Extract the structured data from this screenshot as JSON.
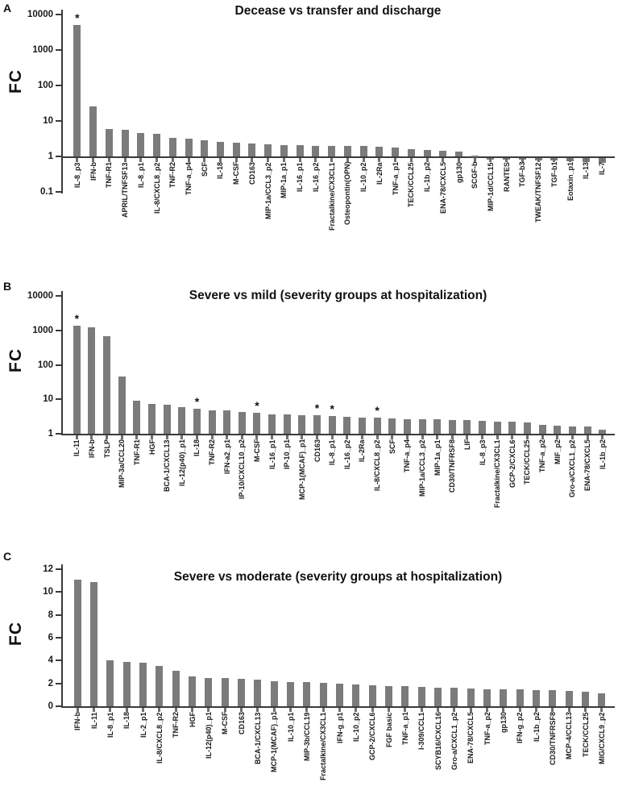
{
  "significance_marker": "*",
  "chart_data": [
    {
      "panel_label": "A",
      "type": "bar",
      "title": "Decease vs transfer and discharge",
      "ylabel": "FC",
      "yscale": "log",
      "ylim": [
        0.1,
        10000
      ],
      "yticks": [
        "10000",
        "1000",
        "100",
        "10",
        "1",
        "0.1"
      ],
      "baseline": 1,
      "grid": false,
      "bar_color": "#7b7b7b",
      "categories": [
        "IL-8_p3",
        "IFN-b",
        "TNF-R1",
        "APRIL/TNFSF13",
        "IL-8_p1",
        "IL-8/CXCL8_p2",
        "TNF-R2",
        "TNF-a_p4",
        "SCF",
        "IL-18",
        "M-CSF",
        "CD163",
        "MIP-1a/CCL3_p2",
        "MIP-1a_p1",
        "IL-16_p1",
        "IL-16_p2",
        "Fractalkine/CX3CL1",
        "Osteopontin(OPN)",
        "IL-10_p2",
        "IL-2Ra",
        "TNF-a_p1",
        "TECK/CCL25",
        "IL-1b_p2",
        "ENA-78/CXCL5",
        "gp130",
        "SCGF-b",
        "MIP-1d/CCL15",
        "RANTES",
        "TGF-b3",
        "TWEAK/TNFSF12",
        "TGF-b1",
        "Eotaxin_p1",
        "IL-13",
        "IL-7"
      ],
      "values": [
        5000,
        25,
        5.8,
        5.5,
        4.6,
        4.3,
        3.4,
        3.2,
        2.8,
        2.6,
        2.4,
        2.3,
        2.2,
        2.1,
        2.05,
        2.0,
        2.0,
        2.0,
        1.95,
        1.9,
        1.75,
        1.6,
        1.55,
        1.45,
        1.35,
        1.05,
        0.95,
        0.92,
        0.9,
        0.87,
        0.85,
        0.82,
        0.78,
        0.72
      ],
      "significant_indices": [
        0
      ]
    },
    {
      "panel_label": "B",
      "type": "bar",
      "title": "Severe vs mild (severity groups at hospitalization)",
      "ylabel": "FC",
      "yscale": "log",
      "ylim": [
        1,
        10000
      ],
      "yticks": [
        "10000",
        "1000",
        "100",
        "10",
        "1"
      ],
      "baseline": 1,
      "grid": false,
      "bar_color": "#7b7b7b",
      "categories": [
        "IL-11",
        "IFN-b",
        "TSLP",
        "MIP-3a/CCL20",
        "TNF-R1",
        "HGF",
        "BCA-1/CXCL13",
        "IL-12(p40)_p1",
        "IL-18",
        "TNF-R2",
        "IFN-a2_p1",
        "IP-10/CXCL10_p2",
        "M-CSF",
        "IL-16_p1",
        "IP-10_p1",
        "MCP-1(MCAF)_p1",
        "CD163",
        "IL-8_p1",
        "IL-16_p2",
        "IL-2Ra",
        "IL-8/CXCL8_p2",
        "SCF",
        "TNF-a_p4",
        "MIP-1a/CCL3_p2",
        "MIP-1a_p1",
        "CD30/TNFRSF8",
        "LIF",
        "IL-8_p3",
        "Fractalkine/CX3CL1",
        "GCP-2/CXCL6",
        "TECK/CCL25",
        "TNF-a_p2",
        "MIF_p2",
        "Gro-a/CXCL1_p2",
        "ENA-78/CXCL5",
        "IL-1b_p2"
      ],
      "values": [
        1350,
        1200,
        680,
        45,
        9,
        7.5,
        6.8,
        5.8,
        5.2,
        4.8,
        4.7,
        4.2,
        4.0,
        3.7,
        3.6,
        3.5,
        3.4,
        3.3,
        3.1,
        3.0,
        3.0,
        2.8,
        2.7,
        2.7,
        2.6,
        2.5,
        2.5,
        2.4,
        2.3,
        2.2,
        2.1,
        1.8,
        1.7,
        1.65,
        1.6,
        1.3
      ],
      "significant_indices": [
        0,
        8,
        12,
        16,
        17,
        20
      ]
    },
    {
      "panel_label": "C",
      "type": "bar",
      "title": "Severe vs moderate (severity groups at hospitalization)",
      "ylabel": "FC",
      "yscale": "linear",
      "ylim": [
        0,
        12
      ],
      "yticks": [
        "12",
        "10",
        "8",
        "6",
        "4",
        "2",
        "0"
      ],
      "baseline": 0,
      "grid": false,
      "bar_color": "#7b7b7b",
      "categories": [
        "IFN-b",
        "IL-11",
        "IL-8_p1",
        "IL-18",
        "IL-2_p1",
        "IL-8/CXCL8_p2",
        "TNF-R2",
        "HGF",
        "IL-12(p40)_p1",
        "M-CSF",
        "CD163",
        "BCA-1/CXCL13",
        "MCP-1(MCAF)_p1",
        "IL-10_p1",
        "MIP-3b/CCL19",
        "Fractalkine/CX3CL1",
        "IFN-g_p1",
        "IL-10_p2",
        "GCP-2/CXCL6",
        "FGF basic",
        "TNF-a_p1",
        "I-309/CCL1",
        "SCYB16/CXCL16",
        "Gro-a/CXCL1_p2",
        "ENA-78/CXCL5",
        "TNF-a_p2",
        "gp130",
        "IFN-g_p2",
        "IL-1b_p2",
        "CD30/TNFRSF8",
        "MCP-4/CCL13",
        "TECK/CCL25",
        "MIG/CXCL9_p2"
      ],
      "values": [
        11.1,
        10.9,
        4.0,
        3.9,
        3.8,
        3.5,
        3.1,
        2.6,
        2.5,
        2.45,
        2.4,
        2.3,
        2.2,
        2.15,
        2.1,
        2.05,
        2.0,
        1.9,
        1.85,
        1.8,
        1.75,
        1.7,
        1.65,
        1.6,
        1.55,
        1.5,
        1.5,
        1.45,
        1.4,
        1.4,
        1.35,
        1.3,
        1.1
      ],
      "significant_indices": []
    }
  ]
}
